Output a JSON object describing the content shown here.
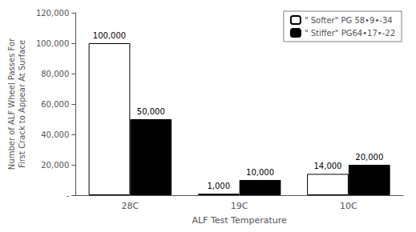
{
  "chart_data": {
    "type": "bar",
    "xlabel": "ALF Test Temperature",
    "ylabel": "Number of ALF Wheel Passes For\nFirst Crack to Appear At Surface",
    "categories": [
      "28C",
      "19C",
      "10C"
    ],
    "series": [
      {
        "name": "\" Softer\" PG 58•9•-34",
        "color": "#ffffff",
        "values": [
          100000,
          1000,
          14000
        ],
        "value_labels": [
          "100,000",
          "1,000",
          "14,000"
        ]
      },
      {
        "name": "\" Stiffer\" PG64•17•-22",
        "color": "#000000",
        "values": [
          50000,
          10000,
          20000
        ],
        "value_labels": [
          "50,000",
          "10,000",
          "20,000"
        ]
      }
    ],
    "ylim": [
      0,
      120000
    ],
    "yticks": [
      {
        "value": 0,
        "label": "-"
      },
      {
        "value": 20000,
        "label": "20,000"
      },
      {
        "value": 40000,
        "label": "40,000"
      },
      {
        "value": 60000,
        "label": "60,000"
      },
      {
        "value": 80000,
        "label": "80,000"
      },
      {
        "value": 100000,
        "label": "100,000"
      },
      {
        "value": 120000,
        "label": "120,000"
      }
    ],
    "data_labels": true,
    "legend": "upper right",
    "grid": false
  }
}
